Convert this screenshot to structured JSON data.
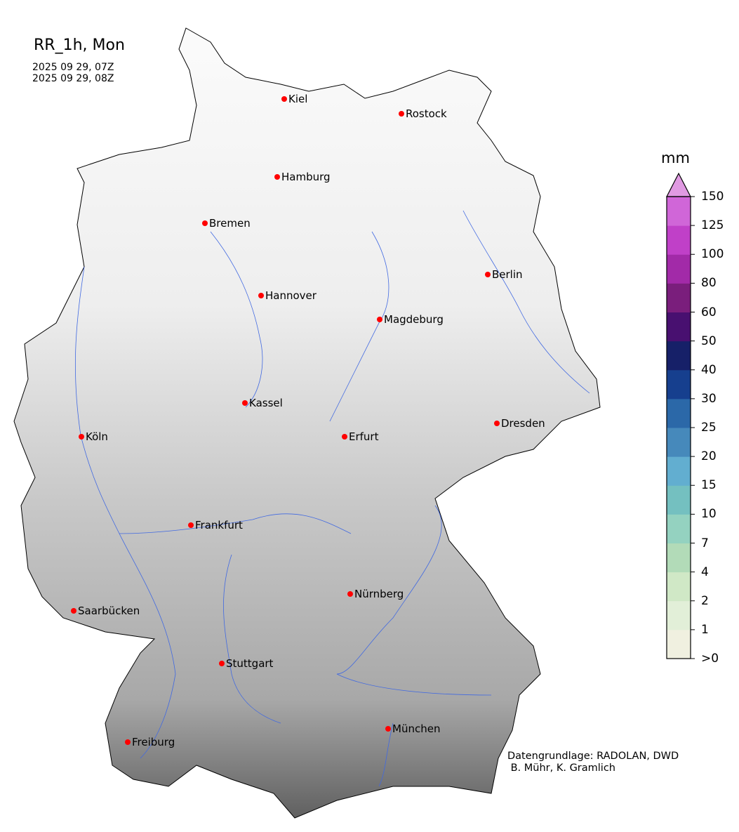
{
  "title": "RR_1h, Mon",
  "time_start": "2025 09 29, 07Z",
  "time_end": "2025 09 29, 08Z",
  "credit_line1": "Datengrundlage: RADOLAN, DWD",
  "credit_line2": " B. Mühr, K. Gramlich",
  "colorbar": {
    "unit": "mm",
    "ticks": [
      ">0",
      "1",
      "2",
      "4",
      "7",
      "10",
      "15",
      "20",
      "25",
      "30",
      "40",
      "50",
      "60",
      "80",
      "100",
      "125",
      "150"
    ],
    "colors": [
      "#f0f0e0",
      "#e2efd8",
      "#d0e8c6",
      "#b2dbb8",
      "#94d2c0",
      "#74c0c0",
      "#62aed0",
      "#4689bb",
      "#2b68a8",
      "#163f8e",
      "#162068",
      "#481070",
      "#7a1e7c",
      "#a22aa8",
      "#c040c8",
      "#d066d8"
    ],
    "extend_color": "#e09ae2"
  },
  "cities": [
    "Kiel",
    "Rostock",
    "Hamburg",
    "Bremen",
    "Berlin",
    "Hannover",
    "Magdeburg",
    "Kassel",
    "Köln",
    "Erfurt",
    "Dresden",
    "Frankfurt",
    "Nürnberg",
    "Saarbücken",
    "Stuttgart",
    "München",
    "Freiburg"
  ],
  "city_marker_color": "#ff0000",
  "river_color": "#4169e1"
}
